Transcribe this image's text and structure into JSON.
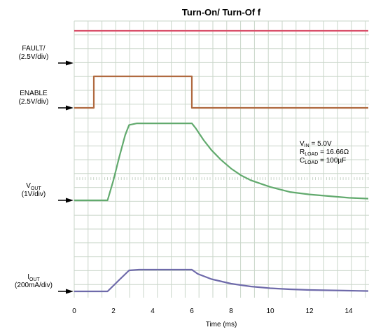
{
  "chart_data": {
    "type": "line",
    "title": "Turn-On/ Turn-Of f",
    "xlabel": "Time (ms)",
    "xlim": [
      0,
      15
    ],
    "x_ticks": [
      "0",
      "2",
      "4",
      "6",
      "8",
      "10",
      "12",
      "14"
    ],
    "grid": true,
    "colors": {
      "fault": "#d9506a",
      "enable": "#b06a40",
      "vout": "#62aa6e",
      "iout": "#6e6aaa",
      "grid": "#c9d6c9",
      "arrow": "#000000"
    },
    "channels": [
      {
        "id": "fault",
        "label": [
          "FAULT/",
          "(2.5V/div)"
        ]
      },
      {
        "id": "enable",
        "label": [
          "ENABLE",
          "(2.5V/div)"
        ]
      },
      {
        "id": "vout",
        "label": [
          "V",
          "OUT",
          "(1V/div)"
        ]
      },
      {
        "id": "iout",
        "label": [
          "I",
          "OUT",
          "(200mA/div)"
        ]
      }
    ],
    "series": [
      {
        "id": "fault",
        "x": [
          0,
          15
        ],
        "y": [
          5.0,
          5.0
        ]
      },
      {
        "id": "enable",
        "x": [
          0,
          1.0,
          1.0,
          6.0,
          6.0,
          15
        ],
        "y": [
          0,
          0,
          5.0,
          5.0,
          0,
          0
        ]
      },
      {
        "id": "vout",
        "x": [
          0,
          1.7,
          2.0,
          2.3,
          2.6,
          2.8,
          3.2,
          6.0,
          6.2,
          6.6,
          7.0,
          7.5,
          8.0,
          8.5,
          9.0,
          10.0,
          11.0,
          12.0,
          13.0,
          14.0,
          15.0
        ],
        "y": [
          0,
          0,
          1.2,
          2.6,
          3.9,
          4.5,
          4.6,
          4.6,
          4.3,
          3.6,
          3.0,
          2.4,
          1.9,
          1.5,
          1.2,
          0.8,
          0.5,
          0.35,
          0.25,
          0.15,
          0.1
        ]
      },
      {
        "id": "iout",
        "x": [
          0,
          1.7,
          2.3,
          2.8,
          3.3,
          6.0,
          6.3,
          7.0,
          8.0,
          9.0,
          10.0,
          11.0,
          12.0,
          13.0,
          14.0,
          15.0
        ],
        "y": [
          0,
          0,
          0.33,
          0.6,
          0.62,
          0.62,
          0.5,
          0.35,
          0.22,
          0.14,
          0.09,
          0.06,
          0.04,
          0.03,
          0.02,
          0.01
        ]
      }
    ],
    "annotations": [
      {
        "main": "V",
        "sub": "IN",
        "rest": " = 5.0V"
      },
      {
        "main": "R",
        "sub": "LOAD",
        "rest": " = 16.66Ω"
      },
      {
        "main": "C",
        "sub": "LOAD",
        "rest": " = 100µF"
      }
    ]
  }
}
